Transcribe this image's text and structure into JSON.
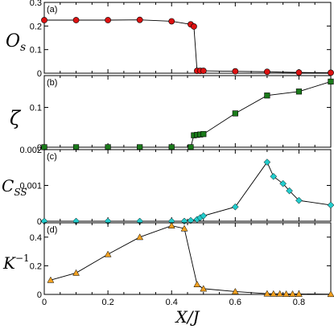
{
  "chart_data": [
    {
      "type": "line",
      "panel": "(a)",
      "ylabel": {
        "main": "O",
        "sub": "s",
        "sup": ""
      },
      "xlim": [
        0,
        0.9
      ],
      "ylim": [
        0,
        0.3
      ],
      "yticks": [
        0,
        0.1,
        0.2,
        0.3
      ],
      "ytick_labels": [
        "0",
        "0.1",
        "0.2",
        "0.3"
      ],
      "grid": false,
      "marker": "circle",
      "color": "#dd1111",
      "series": [
        {
          "x": [
            0,
            0.1,
            0.2,
            0.3,
            0.4,
            0.46,
            0.47,
            0.48,
            0.49,
            0.5,
            0.6,
            0.7,
            0.8,
            0.9
          ],
          "y": [
            0.225,
            0.225,
            0.225,
            0.226,
            0.22,
            0.207,
            0.198,
            0.01,
            0.01,
            0.01,
            0.008,
            0.006,
            0.003,
            0.002
          ]
        }
      ]
    },
    {
      "type": "line",
      "panel": "(b)",
      "ylabel": {
        "main": "ζ",
        "sub": "",
        "sup": ""
      },
      "xlim": [
        0,
        0.9
      ],
      "ylim": [
        0,
        0.18
      ],
      "yticks": [
        0,
        0.1
      ],
      "ytick_labels": [
        "0",
        "0.1"
      ],
      "grid": false,
      "marker": "square",
      "color": "#1a7a1a",
      "series": [
        {
          "x": [
            0,
            0.1,
            0.2,
            0.3,
            0.4,
            0.46,
            0.47,
            0.48,
            0.49,
            0.5,
            0.6,
            0.7,
            0.8,
            0.9
          ],
          "y": [
            0,
            0,
            0,
            0,
            0,
            0,
            0.03,
            0.031,
            0.032,
            0.033,
            0.085,
            0.13,
            0.14,
            0.165
          ]
        }
      ]
    },
    {
      "type": "line",
      "panel": "(c)",
      "ylabel": {
        "main": "C",
        "sub": "SS",
        "sup": ""
      },
      "xlim": [
        0,
        0.9
      ],
      "ylim": [
        0,
        0.002
      ],
      "yticks": [
        0,
        0.001,
        0.002
      ],
      "ytick_labels": [
        "0",
        "0.001",
        "0.002"
      ],
      "grid": false,
      "marker": "diamond",
      "color": "#22cccc",
      "series": [
        {
          "x": [
            0,
            0.1,
            0.2,
            0.3,
            0.4,
            0.44,
            0.46,
            0.48,
            0.49,
            0.5,
            0.6,
            0.7,
            0.72,
            0.75,
            0.77,
            0.8,
            0.9
          ],
          "y": [
            0,
            0,
            0,
            0,
            0,
            0,
            2e-05,
            5e-05,
            0.0001,
            0.00015,
            0.0004,
            0.00165,
            0.00125,
            0.00105,
            0.00085,
            0.00058,
            0.00045
          ]
        }
      ]
    },
    {
      "type": "line",
      "panel": "(d)",
      "ylabel": {
        "main": "K",
        "sub": "",
        "sup": "−1"
      },
      "xlim": [
        0,
        0.9
      ],
      "ylim": [
        0,
        0.5
      ],
      "yticks": [
        0,
        0.2,
        0.4
      ],
      "ytick_labels": [
        "0",
        "0.2",
        "0.4"
      ],
      "xticks": [
        0,
        0.2,
        0.4,
        0.6,
        0.8
      ],
      "xtick_labels": [
        "0",
        "0.2",
        "0.4",
        "0.6",
        "0.8"
      ],
      "xlabel": "X/J",
      "grid": false,
      "marker": "triangle",
      "color": "#f0a020",
      "series": [
        {
          "x": [
            0.02,
            0.1,
            0.2,
            0.3,
            0.4,
            0.44,
            0.48,
            0.5,
            0.6,
            0.7,
            0.72,
            0.74,
            0.76,
            0.78,
            0.8,
            0.9
          ],
          "y": [
            0.1,
            0.15,
            0.28,
            0.4,
            0.48,
            0.46,
            0.07,
            0.04,
            0.02,
            0.005,
            0.004,
            0.004,
            0.003,
            0.003,
            0.003,
            0.002
          ]
        }
      ]
    }
  ]
}
